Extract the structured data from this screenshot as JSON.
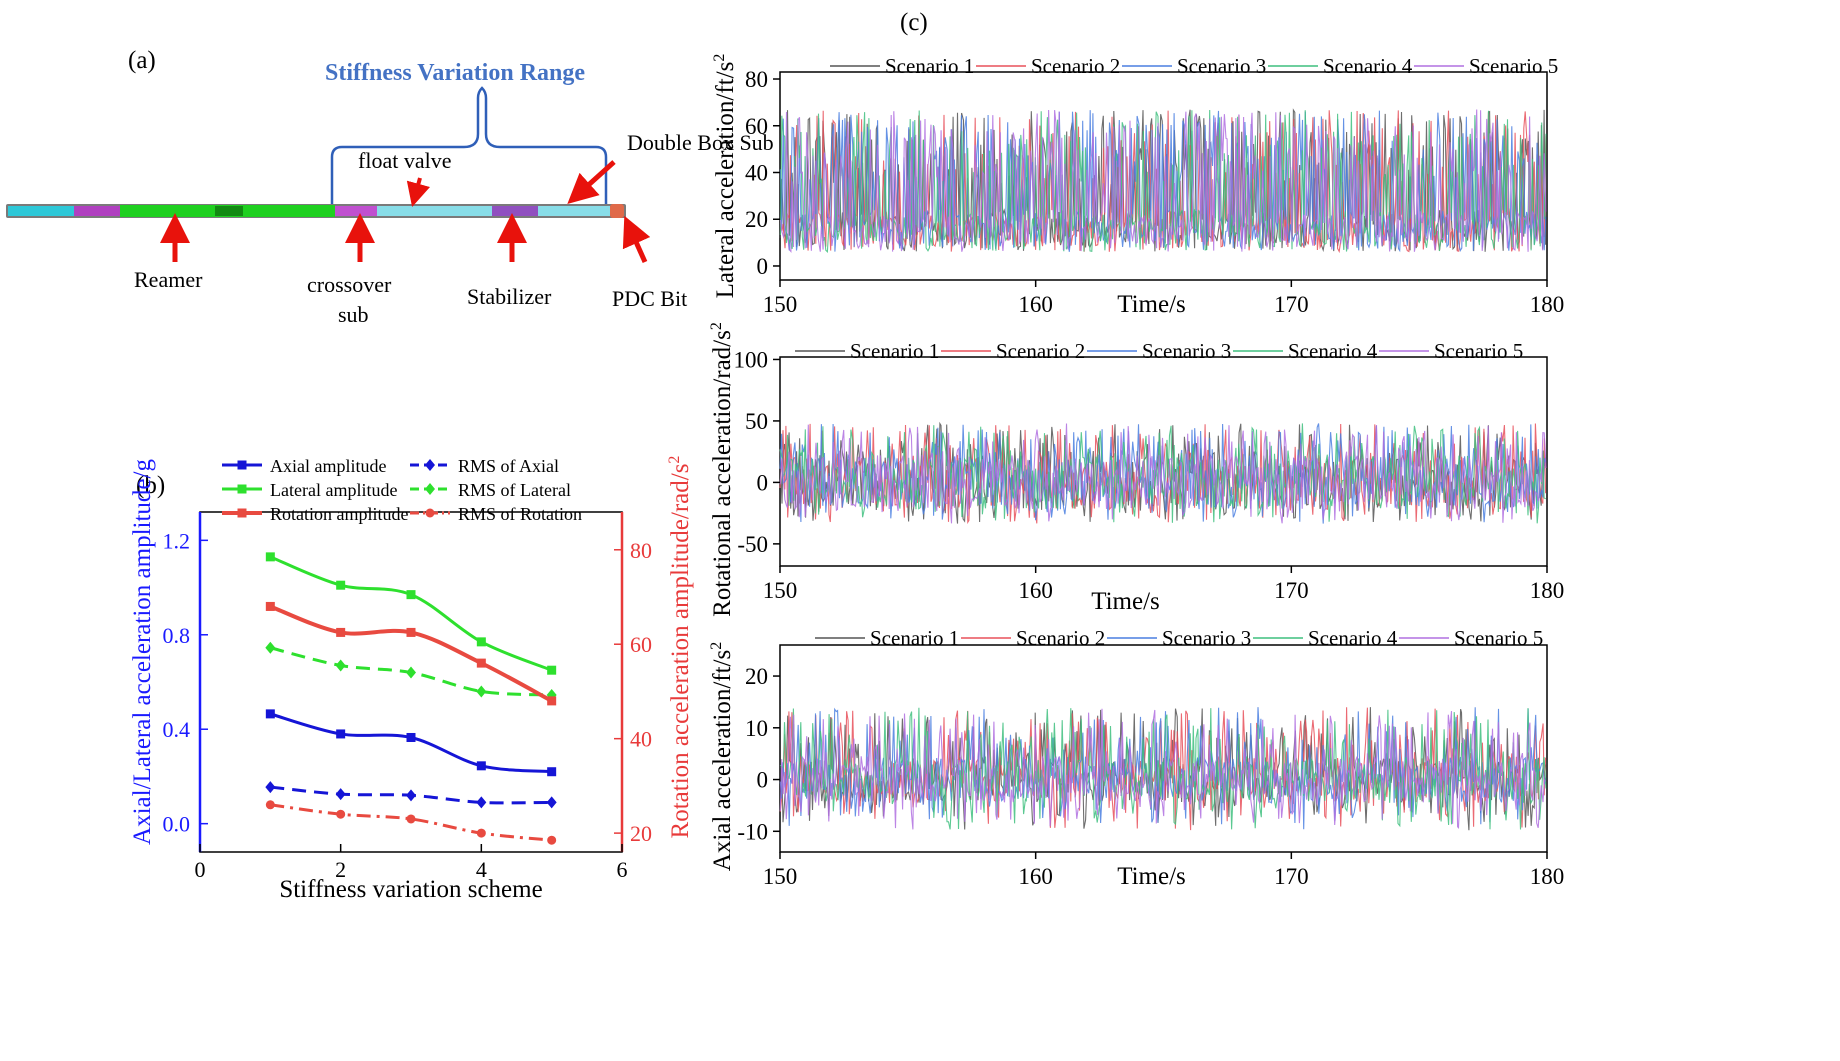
{
  "panel_a": {
    "label": "(a)",
    "range_title": "Stiffness Variation Range",
    "callouts": {
      "float_valve": "float valve",
      "double_box_sub": "Double Box Sub",
      "reamer": "Reamer",
      "crossover_line1": "crossover",
      "crossover_line2": "sub",
      "stabilizer": "Stabilizer",
      "pdc_bit": "PDC Bit"
    },
    "colors": {
      "arrow": "#e8120c",
      "title": "#4472c4",
      "brace": "#2f5fb8"
    }
  },
  "chart_data": [
    {
      "id": "b",
      "type": "line",
      "panel_label": "(b)",
      "xlabel": "Stiffness variation scheme",
      "ylabel": "Axial/Lateral acceleration amplitude/g",
      "ylabel2": "Rotation acceleration amplitude/rad/s",
      "ylabel2_sup": "2",
      "xlim": [
        0,
        6
      ],
      "ylim": [
        -0.12,
        1.32
      ],
      "y2lim": [
        16,
        88
      ],
      "xticks": [
        0,
        2,
        4,
        6
      ],
      "xtick_labels": [
        "0",
        "2",
        "4",
        "6"
      ],
      "yticks": [
        0.0,
        0.4,
        0.8,
        1.2
      ],
      "ytick_labels": [
        "0.0",
        "0.4",
        "0.8",
        "1.2"
      ],
      "y2ticks": [
        20,
        40,
        60,
        80
      ],
      "y2tick_labels": [
        "20",
        "40",
        "60",
        "80"
      ],
      "axis_colors": {
        "left": "#1a1aff",
        "right": "#e83a3a"
      },
      "x": [
        1,
        2,
        3,
        4,
        5
      ],
      "series": [
        {
          "name": "Axial amplitude",
          "axis": "left",
          "color": "#1515d6",
          "dash": "solid",
          "marker": "square",
          "width": 3,
          "values": [
            0.465,
            0.38,
            0.365,
            0.245,
            0.22
          ]
        },
        {
          "name": "RMS of Axial",
          "axis": "left",
          "color": "#1515d6",
          "dash": "dash",
          "marker": "diamond",
          "width": 3,
          "values": [
            0.155,
            0.125,
            0.12,
            0.09,
            0.09
          ]
        },
        {
          "name": "Lateral amplitude",
          "axis": "left",
          "color": "#2ee02e",
          "dash": "solid",
          "marker": "square",
          "width": 3,
          "values": [
            1.13,
            1.01,
            0.97,
            0.77,
            0.65
          ]
        },
        {
          "name": "RMS of Lateral",
          "axis": "left",
          "color": "#2ee02e",
          "dash": "dash",
          "marker": "diamond",
          "width": 3,
          "values": [
            0.745,
            0.67,
            0.64,
            0.56,
            0.545
          ]
        },
        {
          "name": "Rotation amplitude",
          "axis": "right",
          "color": "#e84a40",
          "dash": "solid",
          "marker": "square",
          "width": 4,
          "values": [
            68,
            62.5,
            62.5,
            56,
            48
          ]
        },
        {
          "name": "RMS of Rotation",
          "axis": "right",
          "color": "#e84a40",
          "dash": "dashdot",
          "marker": "star",
          "width": 3,
          "values": [
            26,
            24,
            23,
            20,
            18.5
          ]
        }
      ],
      "legend_location": "top"
    },
    {
      "id": "c1",
      "type": "line",
      "panel_label": "(c)",
      "xlabel": "Time/s",
      "ylabel": "Lateral acceleration/ft/s",
      "ylabel_sup": "2",
      "xlim": [
        150,
        180
      ],
      "ylim": [
        -6,
        83
      ],
      "xticks": [
        150,
        160,
        170,
        180
      ],
      "xtick_labels": [
        "150",
        "160",
        "170",
        "180"
      ],
      "yticks": [
        0,
        20,
        40,
        60,
        80
      ],
      "ytick_labels": [
        "0",
        "20",
        "40",
        "60",
        "80"
      ],
      "signal": {
        "baseline": 15,
        "noise_amp": 9,
        "spike_prob": 0.33,
        "spike_min": 20,
        "spike_max": 52,
        "min": 0,
        "max": 73
      },
      "series": [
        {
          "name": "Scenario 1",
          "color": "#555555"
        },
        {
          "name": "Scenario 2",
          "color": "#e8505a"
        },
        {
          "name": "Scenario 3",
          "color": "#4a7fe0"
        },
        {
          "name": "Scenario 4",
          "color": "#3fbf7f"
        },
        {
          "name": "Scenario 5",
          "color": "#b070e0"
        }
      ]
    },
    {
      "id": "c2",
      "type": "line",
      "xlabel": "Time/s",
      "ylabel": "Rotational acceleration/rad/s",
      "ylabel_sup": "2",
      "xlim": [
        150,
        180
      ],
      "ylim": [
        -68,
        102
      ],
      "xticks": [
        150,
        160,
        170,
        180
      ],
      "xtick_labels": [
        "150",
        "160",
        "170",
        "180"
      ],
      "yticks": [
        -50,
        0,
        50,
        100
      ],
      "ytick_labels": [
        "-50",
        "0",
        "50",
        "100"
      ],
      "signal": {
        "baseline": 0,
        "noise_amp": 22,
        "spike_prob": 0.3,
        "spike_min": 18,
        "spike_max": 48,
        "min": -62,
        "max": 72
      },
      "series": [
        {
          "name": "Scenario 1",
          "color": "#555555"
        },
        {
          "name": "Scenario 2",
          "color": "#e8505a"
        },
        {
          "name": "Scenario 3",
          "color": "#4a7fe0"
        },
        {
          "name": "Scenario 4",
          "color": "#3fbf7f"
        },
        {
          "name": "Scenario 5",
          "color": "#b070e0"
        }
      ]
    },
    {
      "id": "c3",
      "type": "line",
      "xlabel": "Time/s",
      "ylabel": "Axial acceleration/ft/s",
      "ylabel_sup": "2",
      "xlim": [
        150,
        180
      ],
      "ylim": [
        -14,
        26
      ],
      "xticks": [
        150,
        160,
        170,
        180
      ],
      "xtick_labels": [
        "150",
        "160",
        "170",
        "180"
      ],
      "yticks": [
        -10,
        0,
        10,
        20
      ],
      "ytick_labels": [
        "-10",
        "0",
        "10",
        "20"
      ],
      "signal": {
        "baseline": 0,
        "noise_amp": 4.5,
        "spike_prob": 0.3,
        "spike_min": 5,
        "spike_max": 14,
        "min": -10,
        "max": 19
      },
      "series": [
        {
          "name": "Scenario 1",
          "color": "#555555"
        },
        {
          "name": "Scenario 2",
          "color": "#e8505a"
        },
        {
          "name": "Scenario 3",
          "color": "#4a7fe0"
        },
        {
          "name": "Scenario 4",
          "color": "#3fbf7f"
        },
        {
          "name": "Scenario 5",
          "color": "#b070e0"
        }
      ]
    }
  ]
}
